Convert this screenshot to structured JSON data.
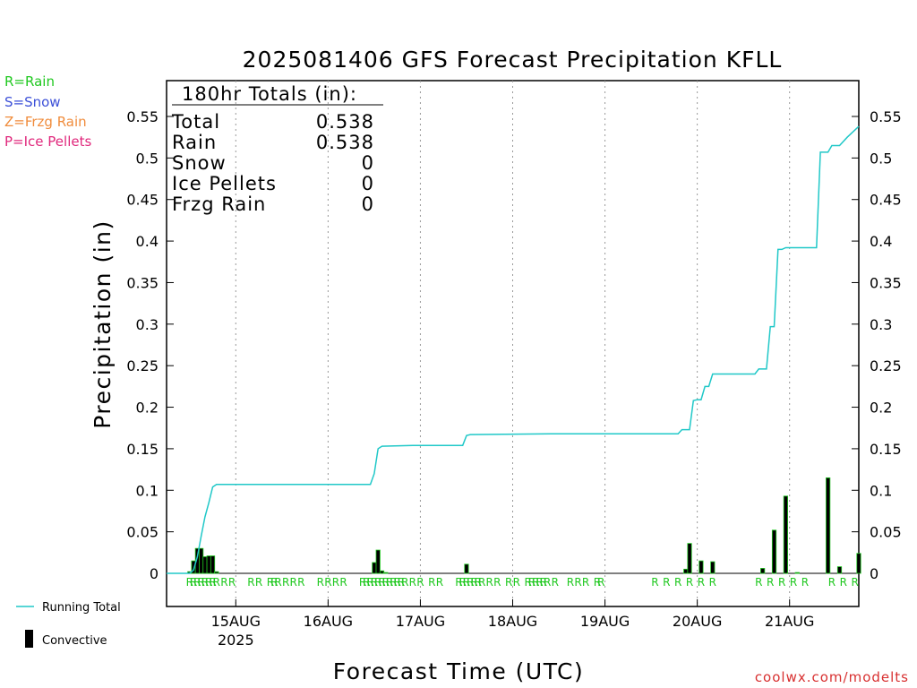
{
  "chart_data": {
    "type": "line",
    "title": "2025081406 GFS Forecast Precipitation KFLL",
    "xlabel": "Forecast Time (UTC)",
    "ylabel": "Precipitation (in)",
    "ylim": [
      0,
      0.59
    ],
    "y_ticks": [
      0,
      0.05,
      0.1,
      0.15,
      0.2,
      0.25,
      0.3,
      0.35,
      0.4,
      0.45,
      0.5,
      0.55
    ],
    "y_tick_labels": [
      "0",
      "0.05",
      "0.1",
      "0.15",
      "0.2",
      "0.25",
      "0.3",
      "0.35",
      "0.4",
      "0.45",
      "0.5",
      "0.55"
    ],
    "x_unit": "forecast hour",
    "xlim": [
      0,
      180
    ],
    "x_ticks": [
      {
        "hour": 18,
        "label": "15AUG",
        "sublabel": "2025"
      },
      {
        "hour": 42,
        "label": "16AUG",
        "sublabel": ""
      },
      {
        "hour": 66,
        "label": "17AUG",
        "sublabel": ""
      },
      {
        "hour": 90,
        "label": "18AUG",
        "sublabel": ""
      },
      {
        "hour": 114,
        "label": "19AUG",
        "sublabel": ""
      },
      {
        "hour": 138,
        "label": "20AUG",
        "sublabel": ""
      },
      {
        "hour": 162,
        "label": "21AUG",
        "sublabel": ""
      }
    ],
    "grid": "vertical dotted at day boundaries",
    "series": [
      {
        "name": "Running Total",
        "color": "#20c8c8",
        "points": [
          [
            0,
            0
          ],
          [
            6,
            0
          ],
          [
            7,
            0.004
          ],
          [
            8,
            0.02
          ],
          [
            9,
            0.045
          ],
          [
            10,
            0.068
          ],
          [
            11,
            0.085
          ],
          [
            12,
            0.104
          ],
          [
            13,
            0.107
          ],
          [
            30,
            0.107
          ],
          [
            40,
            0.107
          ],
          [
            50,
            0.107
          ],
          [
            53,
            0.107
          ],
          [
            54,
            0.12
          ],
          [
            55,
            0.15
          ],
          [
            56,
            0.153
          ],
          [
            64,
            0.154
          ],
          [
            74,
            0.154
          ],
          [
            77,
            0.154
          ],
          [
            78,
            0.166
          ],
          [
            79,
            0.167
          ],
          [
            100,
            0.168
          ],
          [
            130,
            0.168
          ],
          [
            133,
            0.168
          ],
          [
            134,
            0.173
          ],
          [
            136,
            0.173
          ],
          [
            137,
            0.208
          ],
          [
            138,
            0.209
          ],
          [
            139,
            0.209
          ],
          [
            140,
            0.225
          ],
          [
            141,
            0.225
          ],
          [
            142,
            0.24
          ],
          [
            150,
            0.24
          ],
          [
            153,
            0.24
          ],
          [
            154,
            0.246
          ],
          [
            156,
            0.246
          ],
          [
            157,
            0.297
          ],
          [
            158,
            0.297
          ],
          [
            159,
            0.39
          ],
          [
            160,
            0.39
          ],
          [
            161,
            0.392
          ],
          [
            169,
            0.392
          ],
          [
            170,
            0.507
          ],
          [
            172,
            0.507
          ],
          [
            173,
            0.515
          ],
          [
            175,
            0.515
          ],
          [
            177,
            0.525
          ],
          [
            180,
            0.538
          ]
        ]
      },
      {
        "name": "Convective",
        "type": "bar",
        "color": "#000000",
        "values": [
          [
            6,
            0.002
          ],
          [
            7,
            0.015
          ],
          [
            8,
            0.03
          ],
          [
            9,
            0.03
          ],
          [
            10,
            0.02
          ],
          [
            11,
            0.021
          ],
          [
            12,
            0.021
          ],
          [
            13,
            0.002
          ],
          [
            54,
            0.013
          ],
          [
            55,
            0.028
          ],
          [
            56,
            0.003
          ],
          [
            57,
            0.001
          ],
          [
            78,
            0.011
          ],
          [
            135,
            0.005
          ],
          [
            136,
            0.036
          ],
          [
            139,
            0.015
          ],
          [
            142,
            0.014
          ],
          [
            155,
            0.006
          ],
          [
            158,
            0.052
          ],
          [
            161,
            0.093
          ],
          [
            164,
            0.001
          ],
          [
            172,
            0.115
          ],
          [
            175,
            0.008
          ],
          [
            180,
            0.024
          ]
        ]
      }
    ],
    "precip_type_markers": {
      "symbol": "R",
      "hours": [
        6,
        7,
        8,
        9,
        10,
        11,
        12,
        13,
        15,
        17,
        22,
        24,
        27,
        28,
        29,
        31,
        33,
        35,
        40,
        42,
        44,
        46,
        51,
        52,
        53,
        54,
        55,
        56,
        57,
        58,
        59,
        60,
        61,
        62,
        64,
        66,
        69,
        71,
        76,
        77,
        78,
        79,
        80,
        81,
        82,
        84,
        86,
        89,
        91,
        94,
        95,
        96,
        97,
        98,
        99,
        101,
        105,
        107,
        109,
        112,
        113,
        127,
        130,
        133,
        136,
        139,
        142,
        154,
        157,
        160,
        163,
        166,
        173,
        176,
        179
      ]
    },
    "totals_box": {
      "heading": "180hr Totals (in):",
      "rows": [
        {
          "label": "Total",
          "value": "0.538"
        },
        {
          "label": "Rain",
          "value": "0.538"
        },
        {
          "label": "Snow",
          "value": "0"
        },
        {
          "label": "Ice Pellets",
          "value": "0"
        },
        {
          "label": "Frzg Rain",
          "value": "0"
        }
      ]
    }
  },
  "legend_types": [
    {
      "text": "R=Rain",
      "color": "#20c820"
    },
    {
      "text": "S=Snow",
      "color": "#3c50d8"
    },
    {
      "text": "Z=Frzg Rain",
      "color": "#f08c3c"
    },
    {
      "text": "P=Ice Pellets",
      "color": "#e0287c"
    }
  ],
  "legend_series": [
    {
      "text": "Running Total",
      "kind": "line",
      "color": "#20c8c8"
    },
    {
      "text": "Convective",
      "kind": "bar",
      "color": "#000000"
    }
  ],
  "credit": "coolwx.com/modelts",
  "colors": {
    "rain": "#20c820",
    "bar_edge": "#20c820",
    "bar_fill": "#000000",
    "credit": "#d83030"
  }
}
